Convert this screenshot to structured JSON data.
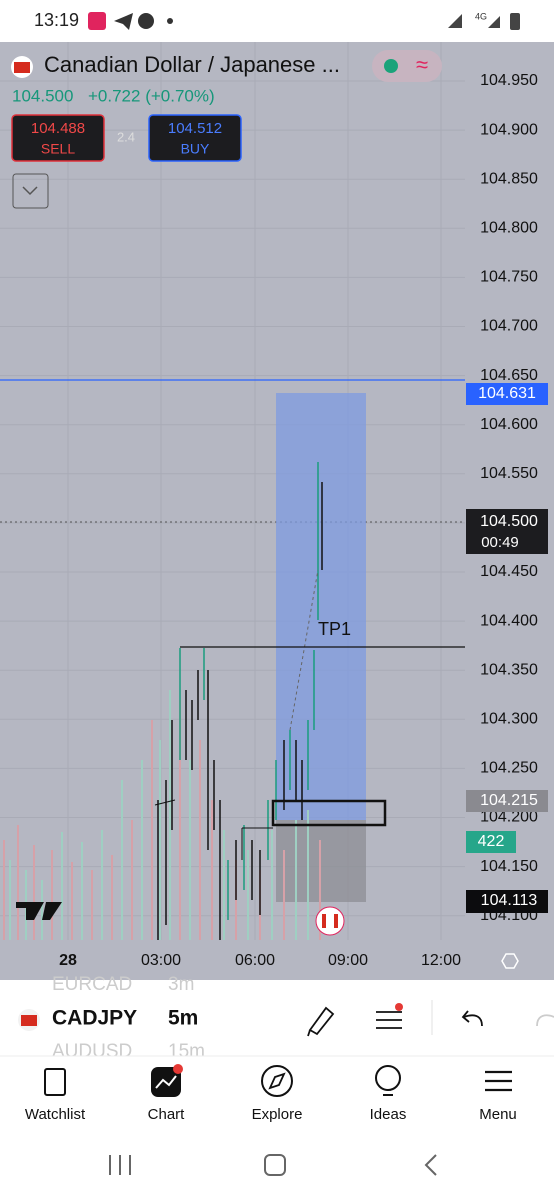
{
  "status_bar": {
    "time": "13:19",
    "network": "4G"
  },
  "header": {
    "title": "Canadian Dollar / Japanese ...",
    "price": "104.500",
    "change": "+0.722 (+0.70%)",
    "sell": {
      "price": "104.488",
      "label": "SELL"
    },
    "spread": "2.4",
    "buy": {
      "price": "104.512",
      "label": "BUY"
    }
  },
  "price_axis": [
    "104.950",
    "104.900",
    "104.850",
    "104.800",
    "104.750",
    "104.700",
    "104.650",
    "104.600",
    "104.550",
    "104.500",
    "104.450",
    "104.400",
    "104.350",
    "104.300",
    "104.250",
    "104.200",
    "104.150",
    "104.100"
  ],
  "markers": {
    "line_price": "104.631",
    "last_price": "104.500",
    "countdown": "00:49",
    "entry_price": "104.215",
    "volume": "422",
    "stop_price": "104.113"
  },
  "annotation": "TP1",
  "time_axis": [
    "28",
    "03:00",
    "06:00",
    "09:00",
    "12:00"
  ],
  "symbol_bar": {
    "symbol_above": "EURCAD",
    "interval_above": "3m",
    "symbol": "CADJPY",
    "interval": "5m",
    "symbol_below": "AUDUSD",
    "interval_below": "15m"
  },
  "nav": [
    "Watchlist",
    "Chart",
    "Explore",
    "Ideas",
    "Menu"
  ]
}
